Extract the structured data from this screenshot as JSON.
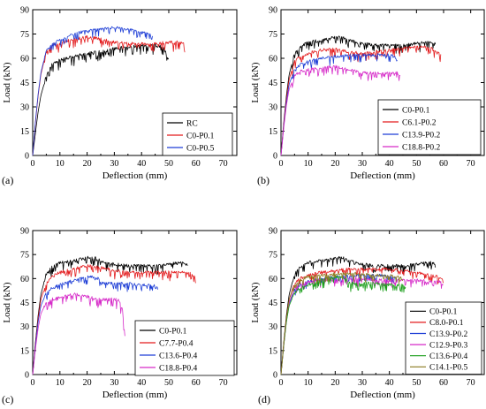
{
  "chart_data": [
    {
      "panel_label": "(a)",
      "type": "line",
      "xlabel": "Deflection (mm)",
      "ylabel": "Load (kN)",
      "xlim": [
        0,
        75
      ],
      "ylim": [
        0,
        90
      ],
      "xticks": [
        0,
        10,
        20,
        30,
        40,
        50,
        60,
        70
      ],
      "yticks": [
        0,
        15,
        30,
        45,
        60,
        75,
        90
      ],
      "legend_position": "bottom-right",
      "series": [
        {
          "name": "RC",
          "color": "#000000",
          "noise": 1.6,
          "x": [
            0,
            1,
            2,
            3,
            5,
            7,
            10,
            15,
            20,
            25,
            30,
            35,
            40,
            45,
            48,
            49,
            50
          ],
          "y": [
            0,
            14,
            27,
            37,
            49,
            56,
            59,
            61,
            63,
            64,
            66,
            67,
            68,
            68,
            67,
            63,
            59
          ]
        },
        {
          "name": "C0-P0.1",
          "color": "#e31a1c",
          "noise": 1.6,
          "x": [
            0,
            1,
            2,
            3,
            5,
            6.5,
            8,
            10,
            15,
            20,
            25,
            30,
            35,
            40,
            45,
            50,
            55,
            56
          ],
          "y": [
            0,
            20,
            37,
            50,
            64,
            67,
            69,
            69,
            72,
            73,
            72,
            70,
            69,
            69,
            69,
            70,
            70,
            67
          ]
        },
        {
          "name": "C0-P0.5",
          "color": "#1f3fd6",
          "noise": 1.4,
          "x": [
            0,
            1,
            2,
            3,
            5,
            6.5,
            8,
            10,
            15,
            20,
            25,
            30,
            35,
            40,
            43,
            44
          ],
          "y": [
            0,
            21,
            38,
            51,
            65,
            68,
            70,
            71,
            75,
            77,
            78,
            79,
            78,
            76,
            75,
            73
          ]
        }
      ]
    },
    {
      "panel_label": "(b)",
      "type": "line",
      "xlabel": "Deflection (mm)",
      "ylabel": "Load (kN)",
      "xlim": [
        0,
        75
      ],
      "ylim": [
        0,
        90
      ],
      "xticks": [
        0,
        10,
        20,
        30,
        40,
        50,
        60,
        70
      ],
      "yticks": [
        0,
        15,
        30,
        45,
        60,
        75,
        90
      ],
      "legend_position": "bottom-right",
      "series": [
        {
          "name": "C0-P0.1",
          "color": "#000000",
          "noise": 1.6,
          "x": [
            0,
            1,
            2,
            3,
            5,
            7,
            10,
            15,
            20,
            23,
            25,
            30,
            35,
            40,
            45,
            50,
            55,
            57
          ],
          "y": [
            0,
            20,
            37,
            50,
            63,
            67,
            70,
            71,
            73,
            73,
            71,
            69,
            68,
            68,
            68,
            69,
            70,
            69
          ]
        },
        {
          "name": "C6.1-P0.2",
          "color": "#e31a1c",
          "noise": 1.5,
          "x": [
            0,
            1,
            2,
            3,
            5,
            7,
            10,
            15,
            20,
            25,
            30,
            35,
            40,
            45,
            50,
            55,
            57,
            59
          ],
          "y": [
            0,
            19,
            35,
            47,
            58,
            61,
            63,
            65,
            66,
            64,
            63,
            64,
            65,
            66,
            67,
            67,
            64,
            62
          ]
        },
        {
          "name": "C13.9-P0.2",
          "color": "#1f3fd6",
          "noise": 1.5,
          "x": [
            0,
            1,
            2,
            3,
            5,
            7,
            10,
            15,
            20,
            25,
            30,
            35,
            40,
            42,
            43
          ],
          "y": [
            0,
            18,
            33,
            44,
            53,
            56,
            58,
            60,
            61,
            62,
            62,
            62,
            62,
            61,
            58
          ]
        },
        {
          "name": "C18.8-P0.2",
          "color": "#d62ac8",
          "noise": 1.4,
          "x": [
            0,
            1,
            2,
            3,
            5,
            7,
            10,
            15,
            20,
            25,
            30,
            35,
            40,
            43,
            44
          ],
          "y": [
            0,
            17,
            31,
            41,
            49,
            52,
            53,
            54,
            55,
            53,
            51,
            51,
            51,
            51,
            49
          ]
        }
      ]
    },
    {
      "panel_label": "(c)",
      "type": "line",
      "xlabel": "Deflection (mm)",
      "ylabel": "Load (kN)",
      "xlim": [
        0,
        75
      ],
      "ylim": [
        0,
        90
      ],
      "xticks": [
        0,
        10,
        20,
        30,
        40,
        50,
        60,
        70
      ],
      "yticks": [
        0,
        15,
        30,
        45,
        60,
        75,
        90
      ],
      "legend_position": "bottom-right",
      "series": [
        {
          "name": "C0-P0.1",
          "color": "#000000",
          "noise": 1.6,
          "x": [
            0,
            1,
            2,
            3,
            5,
            7,
            10,
            15,
            20,
            23,
            25,
            30,
            35,
            40,
            45,
            50,
            55,
            57
          ],
          "y": [
            0,
            20,
            37,
            50,
            63,
            67,
            70,
            71,
            73,
            73,
            71,
            69,
            68,
            68,
            68,
            69,
            70,
            69
          ]
        },
        {
          "name": "C7.7-P0.4",
          "color": "#e31a1c",
          "noise": 1.5,
          "x": [
            0,
            1,
            2,
            3,
            5,
            7,
            10,
            15,
            20,
            25,
            30,
            35,
            40,
            45,
            50,
            55,
            58,
            60
          ],
          "y": [
            0,
            19,
            35,
            47,
            57,
            61,
            64,
            66,
            68,
            67,
            65,
            64,
            64,
            64,
            64,
            64,
            63,
            61
          ]
        },
        {
          "name": "C13.6-P0.4",
          "color": "#1f3fd6",
          "noise": 1.5,
          "x": [
            0,
            1,
            2,
            3,
            5,
            7,
            10,
            15,
            20,
            22,
            24,
            25,
            28,
            30,
            35,
            40,
            45,
            46
          ],
          "y": [
            0,
            18,
            33,
            43,
            51,
            54,
            56,
            59,
            61,
            61,
            60,
            57,
            57,
            57,
            57,
            56,
            56,
            54
          ]
        },
        {
          "name": "C18.8-P0.4",
          "color": "#d62ac8",
          "noise": 1.8,
          "x": [
            0,
            1,
            2,
            3,
            5,
            7,
            10,
            15,
            20,
            25,
            30,
            32,
            33,
            33.5,
            34
          ],
          "y": [
            0,
            16,
            29,
            38,
            45,
            47,
            48,
            50,
            49,
            47,
            47,
            46,
            40,
            30,
            22
          ]
        }
      ]
    },
    {
      "panel_label": "(d)",
      "type": "line",
      "xlabel": "Deflection (mm)",
      "ylabel": "Load (kN)",
      "xlim": [
        0,
        75
      ],
      "ylim": [
        0,
        90
      ],
      "xticks": [
        0,
        10,
        20,
        30,
        40,
        50,
        60,
        70
      ],
      "yticks": [
        0,
        15,
        30,
        45,
        60,
        75,
        90
      ],
      "legend_position": "bottom-right",
      "series": [
        {
          "name": "C0-P0.1",
          "color": "#000000",
          "noise": 1.6,
          "x": [
            0,
            1,
            2,
            3,
            5,
            7,
            10,
            15,
            20,
            23,
            25,
            30,
            35,
            40,
            45,
            50,
            55,
            57
          ],
          "y": [
            0,
            20,
            37,
            50,
            63,
            67,
            70,
            71,
            73,
            73,
            71,
            69,
            68,
            68,
            68,
            69,
            70,
            69
          ]
        },
        {
          "name": "C8.0-P0.1",
          "color": "#e31a1c",
          "noise": 1.4,
          "x": [
            0,
            1,
            2,
            3,
            5,
            7,
            10,
            15,
            20,
            25,
            30,
            35,
            40,
            45,
            50,
            55,
            58,
            60
          ],
          "y": [
            0,
            19,
            35,
            47,
            57,
            60,
            62,
            64,
            65,
            66,
            66,
            66,
            66,
            65,
            64,
            62,
            61,
            59
          ]
        },
        {
          "name": "C13.9-P0.2",
          "color": "#1f3fd6",
          "noise": 1.4,
          "x": [
            0,
            1,
            2,
            3,
            5,
            7,
            10,
            15,
            20,
            25,
            30,
            35,
            40,
            42,
            43
          ],
          "y": [
            0,
            18,
            33,
            44,
            53,
            56,
            58,
            60,
            61,
            62,
            62,
            62,
            62,
            61,
            58
          ]
        },
        {
          "name": "C12.9-P0.3",
          "color": "#d62ac8",
          "noise": 1.4,
          "x": [
            0,
            1,
            2,
            3,
            5,
            7,
            10,
            15,
            20,
            25,
            30,
            35,
            40,
            45,
            50,
            55,
            59,
            60
          ],
          "y": [
            0,
            18,
            34,
            45,
            54,
            57,
            58,
            59,
            60,
            60,
            60,
            59,
            59,
            59,
            59,
            58,
            58,
            56
          ]
        },
        {
          "name": "C13.6-P0.4",
          "color": "#1a9e1a",
          "noise": 1.5,
          "x": [
            0,
            1,
            2,
            3,
            5,
            7,
            10,
            15,
            20,
            22,
            24,
            25,
            28,
            30,
            35,
            40,
            45,
            46
          ],
          "y": [
            0,
            18,
            33,
            43,
            51,
            54,
            56,
            59,
            61,
            61,
            60,
            57,
            57,
            57,
            57,
            56,
            56,
            54
          ]
        },
        {
          "name": "C14.1-P0.5",
          "color": "#8a7a1e",
          "noise": 1.4,
          "x": [
            0,
            1,
            2,
            3,
            5,
            7,
            10,
            15,
            20,
            25,
            30,
            35,
            40,
            44,
            45
          ],
          "y": [
            0,
            19,
            35,
            47,
            56,
            59,
            61,
            62,
            63,
            63,
            63,
            62,
            62,
            61,
            59
          ]
        }
      ]
    }
  ]
}
